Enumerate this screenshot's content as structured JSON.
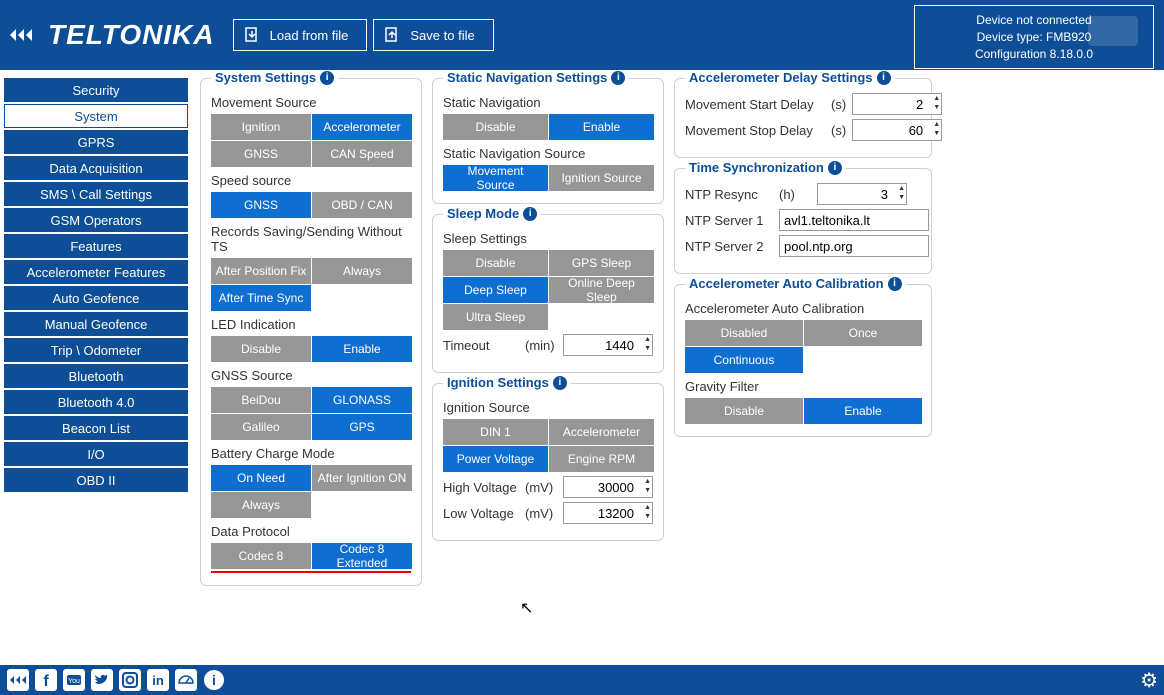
{
  "header": {
    "brand": "TELTONIKA",
    "load_btn": "Load from file",
    "save_btn": "Save to file",
    "status1": "Device not connected",
    "status2": "Device type: FMB920",
    "status3": "Configuration 8.18.0.0"
  },
  "sidebar": {
    "items": [
      "Security",
      "System",
      "GPRS",
      "Data Acquisition",
      "SMS \\ Call Settings",
      "GSM Operators",
      "Features",
      "Accelerometer Features",
      "Auto Geofence",
      "Manual Geofence",
      "Trip \\ Odometer",
      "Bluetooth",
      "Bluetooth 4.0",
      "Beacon List",
      "I/O",
      "OBD II"
    ],
    "active_index": 1
  },
  "system_settings": {
    "title": "System Settings",
    "movement_source": {
      "label": "Movement Source",
      "options": [
        "Ignition",
        "Accelerometer",
        "GNSS",
        "CAN Speed"
      ],
      "selected": [
        1
      ]
    },
    "speed_source": {
      "label": "Speed source",
      "options": [
        "GNSS",
        "OBD / CAN"
      ],
      "selected": [
        0
      ]
    },
    "records_ts": {
      "label": "Records Saving/Sending Without TS",
      "options": [
        "After Position Fix",
        "Always",
        "After Time Sync"
      ],
      "selected": [
        2
      ]
    },
    "led": {
      "label": "LED Indication",
      "options": [
        "Disable",
        "Enable"
      ],
      "selected": [
        1
      ]
    },
    "gnss_source": {
      "label": "GNSS Source",
      "options": [
        "BeiDou",
        "GLONASS",
        "Galileo",
        "GPS"
      ],
      "selected": [
        1,
        3
      ]
    },
    "battery": {
      "label": "Battery Charge Mode",
      "options": [
        "On Need",
        "After Ignition ON",
        "Always"
      ],
      "selected": [
        0
      ]
    },
    "protocol": {
      "label": "Data Protocol",
      "options": [
        "Codec 8",
        "Codec 8 Extended"
      ],
      "selected": [
        1
      ]
    }
  },
  "static_nav": {
    "title": "Static Navigation Settings",
    "nav": {
      "label": "Static Navigation",
      "options": [
        "Disable",
        "Enable"
      ],
      "selected": [
        1
      ]
    },
    "source": {
      "label": "Static Navigation Source",
      "options": [
        "Movement Source",
        "Ignition Source"
      ],
      "selected": [
        0
      ]
    }
  },
  "sleep": {
    "title": "Sleep Mode",
    "settings": {
      "label": "Sleep Settings",
      "options": [
        "Disable",
        "GPS Sleep",
        "Deep Sleep",
        "Online Deep Sleep",
        "Ultra Sleep"
      ],
      "selected": [
        2
      ]
    },
    "timeout": {
      "label": "Timeout",
      "unit": "(min)",
      "value": "1440"
    }
  },
  "ignition": {
    "title": "Ignition Settings",
    "source": {
      "label": "Ignition Source",
      "options": [
        "DIN 1",
        "Accelerometer",
        "Power Voltage",
        "Engine RPM"
      ],
      "selected": [
        2
      ]
    },
    "high_v": {
      "label": "High Voltage",
      "unit": "(mV)",
      "value": "30000"
    },
    "low_v": {
      "label": "Low Voltage",
      "unit": "(mV)",
      "value": "13200"
    }
  },
  "accel_delay": {
    "title": "Accelerometer Delay Settings",
    "start": {
      "label": "Movement Start Delay",
      "unit": "(s)",
      "value": "2"
    },
    "stop": {
      "label": "Movement Stop Delay",
      "unit": "(s)",
      "value": "60"
    }
  },
  "time_sync": {
    "title": "Time Synchronization",
    "resync": {
      "label": "NTP Resync",
      "unit": "(h)",
      "value": "3"
    },
    "server1": {
      "label": "NTP Server 1",
      "value": "avl1.teltonika.lt"
    },
    "server2": {
      "label": "NTP Server 2",
      "value": "pool.ntp.org"
    }
  },
  "auto_cal": {
    "title": "Accelerometer Auto Calibration",
    "cal": {
      "label": "Accelerometer Auto Calibration",
      "options": [
        "Disabled",
        "Once",
        "Continuous"
      ],
      "selected": [
        2
      ]
    },
    "gravity": {
      "label": "Gravity Filter",
      "options": [
        "Disable",
        "Enable"
      ],
      "selected": [
        1
      ]
    }
  },
  "colors": {
    "primary": "#0d4e96",
    "selected": "#0f6fd1",
    "unselected": "#969696"
  }
}
